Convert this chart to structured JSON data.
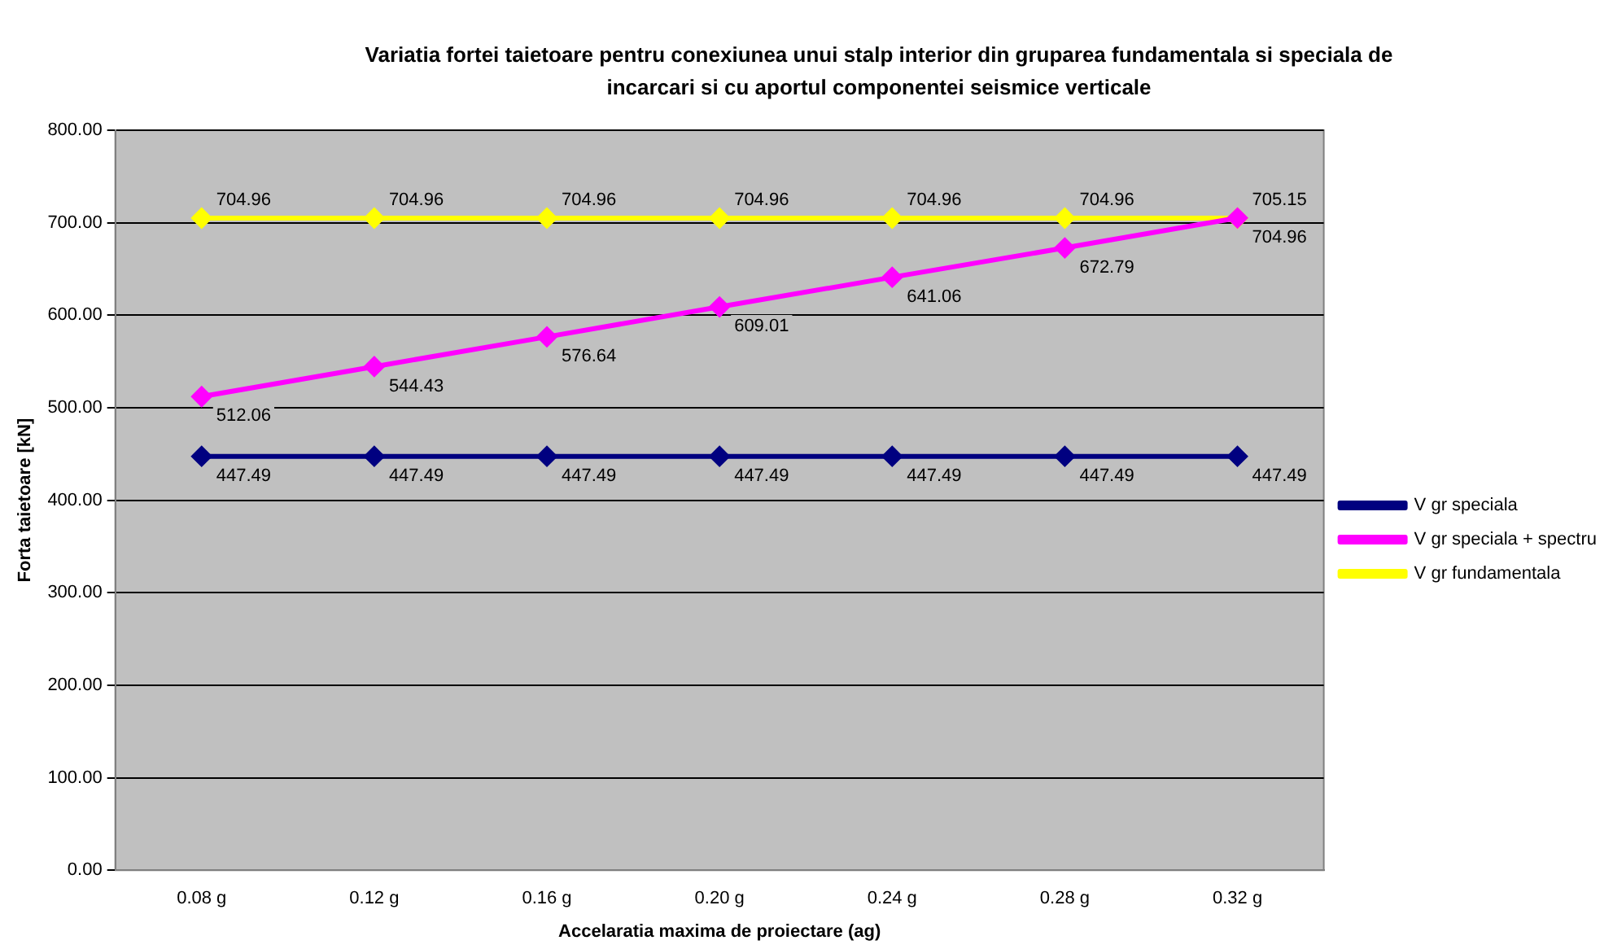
{
  "chart_data": {
    "type": "line",
    "title": "Variatia fortei taietoare pentru conexiunea unui stalp interior din gruparea fundamentala si speciala de incarcari si cu aportul componentei seismice verticale",
    "xlabel": "Accelaratia maxima de proiectare (ag)",
    "ylabel": "Forta taietoare [kN]",
    "categories": [
      "0.08 g",
      "0.12 g",
      "0.16 g",
      "0.20 g",
      "0.24 g",
      "0.28 g",
      "0.32 g"
    ],
    "series": [
      {
        "name": "V gr speciala",
        "color": "#000080",
        "values": [
          447.49,
          447.49,
          447.49,
          447.49,
          447.49,
          447.49,
          447.49
        ]
      },
      {
        "name": "V gr speciala + spectru",
        "color": "#ff00ff",
        "values": [
          512.06,
          544.43,
          576.64,
          609.01,
          641.06,
          672.79,
          705.15
        ]
      },
      {
        "name": "V gr fundamentala",
        "color": "#ffff00",
        "values": [
          704.96,
          704.96,
          704.96,
          704.96,
          704.96,
          704.96,
          704.96
        ]
      }
    ],
    "ylim": [
      0,
      800
    ],
    "yticks": [
      {
        "value": 0,
        "label": "0.00"
      },
      {
        "value": 100,
        "label": "100.00"
      },
      {
        "value": 200,
        "label": "200.00"
      },
      {
        "value": 300,
        "label": "300.00"
      },
      {
        "value": 400,
        "label": "400.00"
      },
      {
        "value": 500,
        "label": "500.00"
      },
      {
        "value": 600,
        "label": "600.00"
      },
      {
        "value": 700,
        "label": "700.00"
      },
      {
        "value": 800,
        "label": "800.00"
      }
    ],
    "grid": "y",
    "legend": "right",
    "marker": "diamond",
    "line_style": "solid",
    "data_labels": true
  }
}
